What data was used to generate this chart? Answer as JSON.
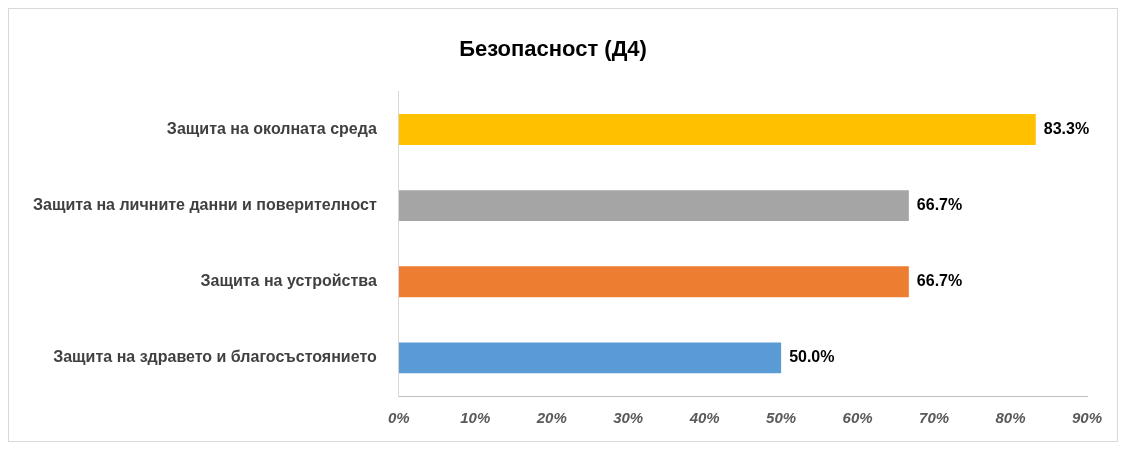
{
  "chart_data": {
    "type": "bar",
    "orientation": "horizontal",
    "title": "Безопасност (Д4)",
    "categories": [
      "Защита на околната среда",
      "Защита на личните данни и поверителност",
      "Защита на устройства",
      "Защита на здравето и благосъстоянието"
    ],
    "values": [
      83.3,
      66.7,
      66.7,
      50.0
    ],
    "colors": [
      "#ffc000",
      "#a5a5a5",
      "#ed7d31",
      "#5b9bd5"
    ],
    "value_labels": [
      "83.3%",
      "66.7%",
      "66.7%",
      "50.0%"
    ],
    "xlim": [
      0,
      90
    ],
    "xticks": [
      {
        "value": 0,
        "label": "0%"
      },
      {
        "value": 10,
        "label": "10%"
      },
      {
        "value": 20,
        "label": "20%"
      },
      {
        "value": 30,
        "label": "30%"
      },
      {
        "value": 40,
        "label": "40%"
      },
      {
        "value": 50,
        "label": "50%"
      },
      {
        "value": 60,
        "label": "60%"
      },
      {
        "value": 70,
        "label": "70%"
      },
      {
        "value": 80,
        "label": "80%"
      },
      {
        "value": 90,
        "label": "90%"
      }
    ],
    "grid": false,
    "legend": false
  }
}
